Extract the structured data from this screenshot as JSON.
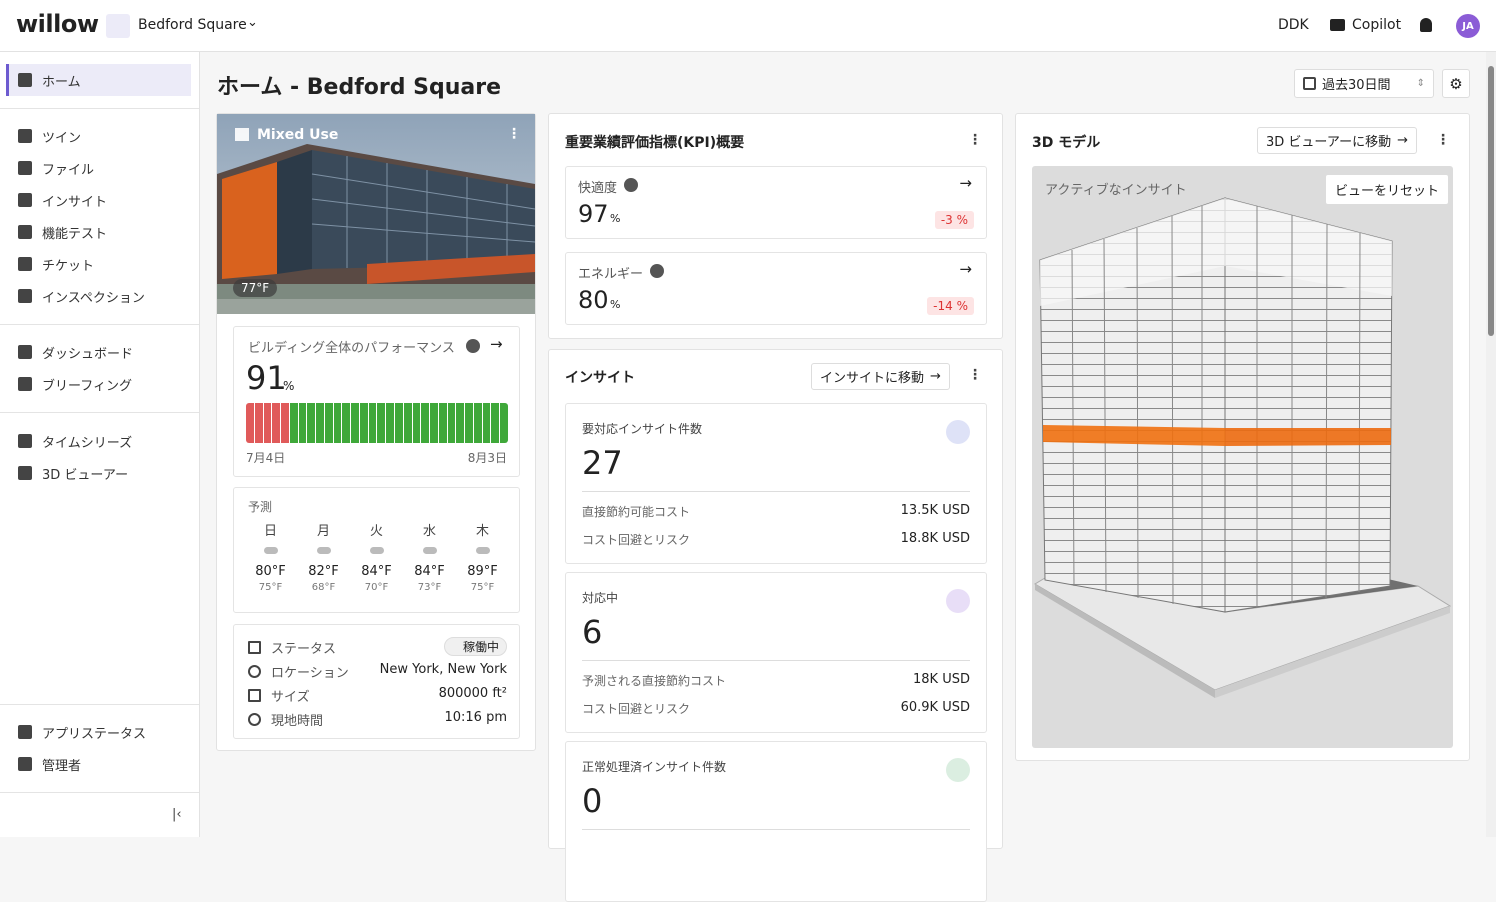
{
  "header": {
    "logo": "willow",
    "site": "Bedford Square",
    "user_code": "DDK",
    "copilot": "Copilot",
    "avatar": "JA"
  },
  "sidebar": {
    "groups": [
      [
        "ホーム"
      ],
      [
        "ツイン",
        "ファイル",
        "インサイト",
        "機能テスト",
        "チケット",
        "インスペクション"
      ],
      [
        "ダッシュボード",
        "ブリーフィング"
      ],
      [
        "タイムシリーズ",
        "3D ビューアー"
      ]
    ],
    "bottom": [
      "アプリステータス",
      "管理者"
    ]
  },
  "page": {
    "title": "ホーム - Bedford Square",
    "date_range": "過去30日間"
  },
  "building": {
    "tag": "Mixed Use",
    "temperature": "77°F",
    "performance": {
      "title": "ビルディング全体のパフォーマンス",
      "value": 91,
      "unit": "%",
      "start": "7月4日",
      "end": "8月3日"
    },
    "forecast": {
      "title": "予測",
      "days": [
        {
          "day": "日",
          "high": "80°F",
          "low": "75°F"
        },
        {
          "day": "月",
          "high": "82°F",
          "low": "68°F"
        },
        {
          "day": "火",
          "high": "84°F",
          "low": "70°F"
        },
        {
          "day": "水",
          "high": "84°F",
          "low": "73°F"
        },
        {
          "day": "木",
          "high": "89°F",
          "low": "75°F"
        }
      ]
    },
    "info": [
      {
        "label": "ステータス",
        "value": "稼働中"
      },
      {
        "label": "ロケーション",
        "value": "New York, New York"
      },
      {
        "label": "サイズ",
        "value": "800000 ft²"
      },
      {
        "label": "現地時間",
        "value": "10:16 pm"
      }
    ]
  },
  "kpi": {
    "title": "重要業績評価指標(KPI)概要",
    "items": [
      {
        "label": "快適度",
        "value": 97,
        "unit": "%",
        "change": "-3 %"
      },
      {
        "label": "エネルギー",
        "value": 80,
        "unit": "%",
        "change": "-14 %"
      }
    ]
  },
  "insights": {
    "title": "インサイト",
    "button": "インサイトに移動",
    "sections": [
      {
        "label": "要対応インサイト件数",
        "count": 27,
        "rows": [
          {
            "label": "直接節約可能コスト",
            "value": "13.5K USD"
          },
          {
            "label": "コスト回避とリスク",
            "value": "18.8K USD"
          }
        ]
      },
      {
        "label": "対応中",
        "count": 6,
        "rows": [
          {
            "label": "予測される直接節約コスト",
            "value": "18K USD"
          },
          {
            "label": "コスト回避とリスク",
            "value": "60.9K USD"
          }
        ]
      },
      {
        "label": "正常処理済インサイト件数",
        "count": 0,
        "rows": []
      }
    ]
  },
  "model": {
    "title": "3D モデル",
    "button": "3D ビューアーに移動",
    "overlay": "アクティブなインサイト",
    "reset": "ビューをリセット"
  }
}
